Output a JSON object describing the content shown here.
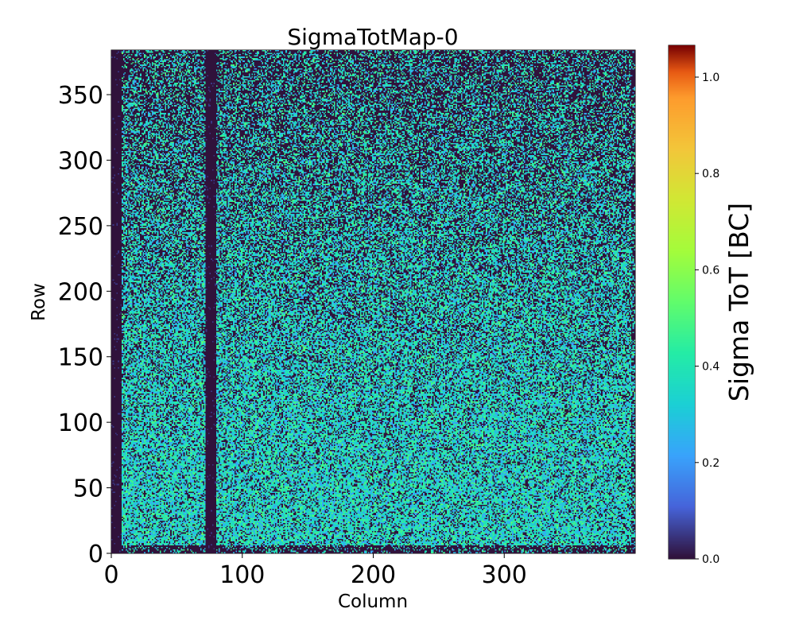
{
  "chart_data": {
    "type": "heatmap",
    "title": "SigmaTotMap-0",
    "xlabel": "Column",
    "ylabel": "Row",
    "xlim": [
      0,
      400
    ],
    "ylim": [
      0,
      384
    ],
    "x_ticks": [
      0,
      100,
      200,
      300
    ],
    "x_tick_labels": [
      "0",
      "100",
      "200",
      "300"
    ],
    "y_ticks": [
      0,
      50,
      100,
      150,
      200,
      250,
      300,
      350
    ],
    "y_tick_labels": [
      "0",
      "50",
      "100",
      "150",
      "200",
      "250",
      "300",
      "350"
    ],
    "grid": false,
    "colormap": "turbo",
    "colorbar": {
      "label": "Sigma ToT [BC]",
      "range": [
        0.0,
        1.066
      ],
      "ticks": [
        0.0,
        0.2,
        0.4,
        0.6,
        0.8,
        1.0
      ],
      "tick_labels": [
        "0.0",
        "0.2",
        "0.4",
        "0.6",
        "0.8",
        "1.0"
      ]
    },
    "data_description": "Per-pixel sigma ToT noise map (400 columns x 384 rows); values mostly 0.2-0.5 BC with many zero pixels; dead columns ~0-8 and ~72-80 are near 0; density of nonzero pixels decreases toward high rows",
    "features": {
      "dead_column_bands": [
        [
          0,
          8
        ],
        [
          72,
          80
        ]
      ],
      "typical_value_range": [
        0.2,
        0.5
      ]
    }
  }
}
